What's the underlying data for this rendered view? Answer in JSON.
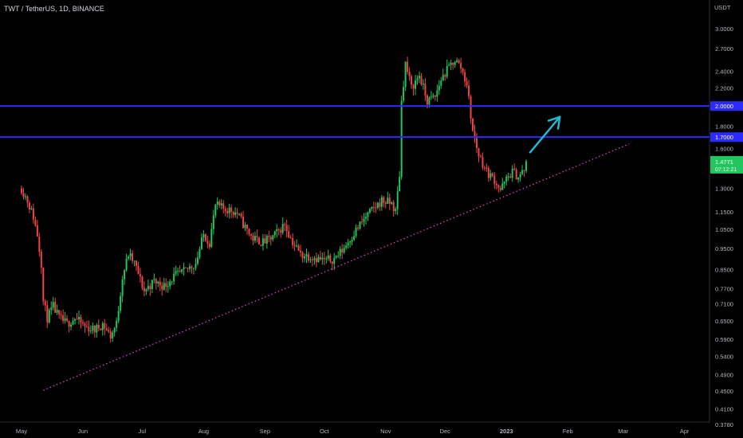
{
  "header": {
    "title": "TWT / TetherUS, 1D, BINANCE"
  },
  "colors": {
    "background": "#000000",
    "up": "#22c55e",
    "down": "#ef4444",
    "level_line": "#2b2bff",
    "trendline": "#e040c0",
    "arrow": "#22b8d0",
    "price_label": "#22c55e",
    "axis_text": "#b2b5be"
  },
  "chart_data": {
    "type": "candlestick",
    "title": "TWT / TetherUS, 1D, BINANCE",
    "yscale": "log",
    "ylim": [
      0.378,
      3.3
    ],
    "xlim": [
      "2022-05-01",
      "2023-04-10"
    ],
    "unit_label": "USDT",
    "y_ticks": [
      "3.0000",
      "2.7000",
      "2.4000",
      "2.2000",
      "2.0000",
      "1.8000",
      "1.7000",
      "1.6000",
      "1.4771",
      "1.3000",
      "1.1500",
      "1.0500",
      "0.9500",
      "0.8500",
      "0.7700",
      "0.7100",
      "0.6500",
      "0.5900",
      "0.5400",
      "0.4900",
      "0.4500",
      "0.4100",
      "0.3780"
    ],
    "x_ticks": [
      {
        "label": "May",
        "date": "2022-05-01"
      },
      {
        "label": "Jun",
        "date": "2022-06-01"
      },
      {
        "label": "Jul",
        "date": "2022-07-01"
      },
      {
        "label": "Aug",
        "date": "2022-08-01"
      },
      {
        "label": "Sep",
        "date": "2022-09-01"
      },
      {
        "label": "Oct",
        "date": "2022-10-01"
      },
      {
        "label": "Nov",
        "date": "2022-11-01"
      },
      {
        "label": "Dec",
        "date": "2022-12-01"
      },
      {
        "label": "2023",
        "date": "2023-01-01"
      },
      {
        "label": "Feb",
        "date": "2023-02-01"
      },
      {
        "label": "Mar",
        "date": "2023-03-01"
      },
      {
        "label": "Apr",
        "date": "2023-04-01"
      }
    ],
    "horizontal_levels": [
      {
        "price": 2.0,
        "label": "2.0000"
      },
      {
        "price": 1.7,
        "label": "1.7000"
      }
    ],
    "current_price": {
      "value": 1.4771,
      "label": "1.4771",
      "countdown": "07:12:21"
    },
    "trendline": {
      "from": {
        "date": "2022-05-12",
        "price": 0.452
      },
      "to": {
        "date": "2023-03-04",
        "price": 1.64
      }
    },
    "arrow": {
      "from": {
        "date": "2023-01-13",
        "price": 1.57
      },
      "to": {
        "date": "2023-01-28",
        "price": 1.89
      }
    },
    "close_series": [
      [
        "2022-05-01",
        1.3
      ],
      [
        "2022-05-04",
        1.22
      ],
      [
        "2022-05-07",
        1.12
      ],
      [
        "2022-05-09",
        1.02
      ],
      [
        "2022-05-11",
        0.88
      ],
      [
        "2022-05-12",
        0.72
      ],
      [
        "2022-05-14",
        0.66
      ],
      [
        "2022-05-17",
        0.7
      ],
      [
        "2022-05-20",
        0.66
      ],
      [
        "2022-05-24",
        0.64
      ],
      [
        "2022-05-28",
        0.66
      ],
      [
        "2022-06-02",
        0.63
      ],
      [
        "2022-06-07",
        0.62
      ],
      [
        "2022-06-11",
        0.64
      ],
      [
        "2022-06-15",
        0.6
      ],
      [
        "2022-06-18",
        0.64
      ],
      [
        "2022-06-21",
        0.82
      ],
      [
        "2022-06-24",
        0.92
      ],
      [
        "2022-06-27",
        0.88
      ],
      [
        "2022-07-02",
        0.76
      ],
      [
        "2022-07-07",
        0.8
      ],
      [
        "2022-07-12",
        0.78
      ],
      [
        "2022-07-17",
        0.82
      ],
      [
        "2022-07-22",
        0.84
      ],
      [
        "2022-07-28",
        0.88
      ],
      [
        "2022-08-01",
        1.02
      ],
      [
        "2022-08-04",
        0.98
      ],
      [
        "2022-08-07",
        1.19
      ],
      [
        "2022-08-11",
        1.17
      ],
      [
        "2022-08-15",
        1.16
      ],
      [
        "2022-08-18",
        1.14
      ],
      [
        "2022-08-22",
        1.06
      ],
      [
        "2022-08-26",
        1.0
      ],
      [
        "2022-08-31",
        0.98
      ],
      [
        "2022-09-04",
        1.0
      ],
      [
        "2022-09-08",
        1.04
      ],
      [
        "2022-09-11",
        1.08
      ],
      [
        "2022-09-14",
        1.0
      ],
      [
        "2022-09-19",
        0.92
      ],
      [
        "2022-09-25",
        0.91
      ],
      [
        "2022-10-01",
        0.89
      ],
      [
        "2022-10-06",
        0.9
      ],
      [
        "2022-10-10",
        0.94
      ],
      [
        "2022-10-14",
        1.0
      ],
      [
        "2022-10-18",
        1.06
      ],
      [
        "2022-10-22",
        1.12
      ],
      [
        "2022-10-26",
        1.17
      ],
      [
        "2022-10-30",
        1.22
      ],
      [
        "2022-11-04",
        1.2
      ],
      [
        "2022-11-06",
        1.15
      ],
      [
        "2022-11-08",
        1.4
      ],
      [
        "2022-11-09",
        2.05
      ],
      [
        "2022-11-11",
        2.5
      ],
      [
        "2022-11-14",
        2.2
      ],
      [
        "2022-11-18",
        2.35
      ],
      [
        "2022-11-22",
        2.05
      ],
      [
        "2022-11-26",
        2.1
      ],
      [
        "2022-11-29",
        2.3
      ],
      [
        "2022-12-03",
        2.45
      ],
      [
        "2022-12-06",
        2.55
      ],
      [
        "2022-12-09",
        2.45
      ],
      [
        "2022-12-12",
        2.25
      ],
      [
        "2022-12-15",
        1.75
      ],
      [
        "2022-12-18",
        1.55
      ],
      [
        "2022-12-22",
        1.42
      ],
      [
        "2022-12-26",
        1.36
      ],
      [
        "2022-12-29",
        1.29
      ],
      [
        "2023-01-01",
        1.36
      ],
      [
        "2023-01-04",
        1.42
      ],
      [
        "2023-01-07",
        1.38
      ],
      [
        "2023-01-10",
        1.43
      ],
      [
        "2023-01-11",
        1.4771
      ]
    ]
  }
}
